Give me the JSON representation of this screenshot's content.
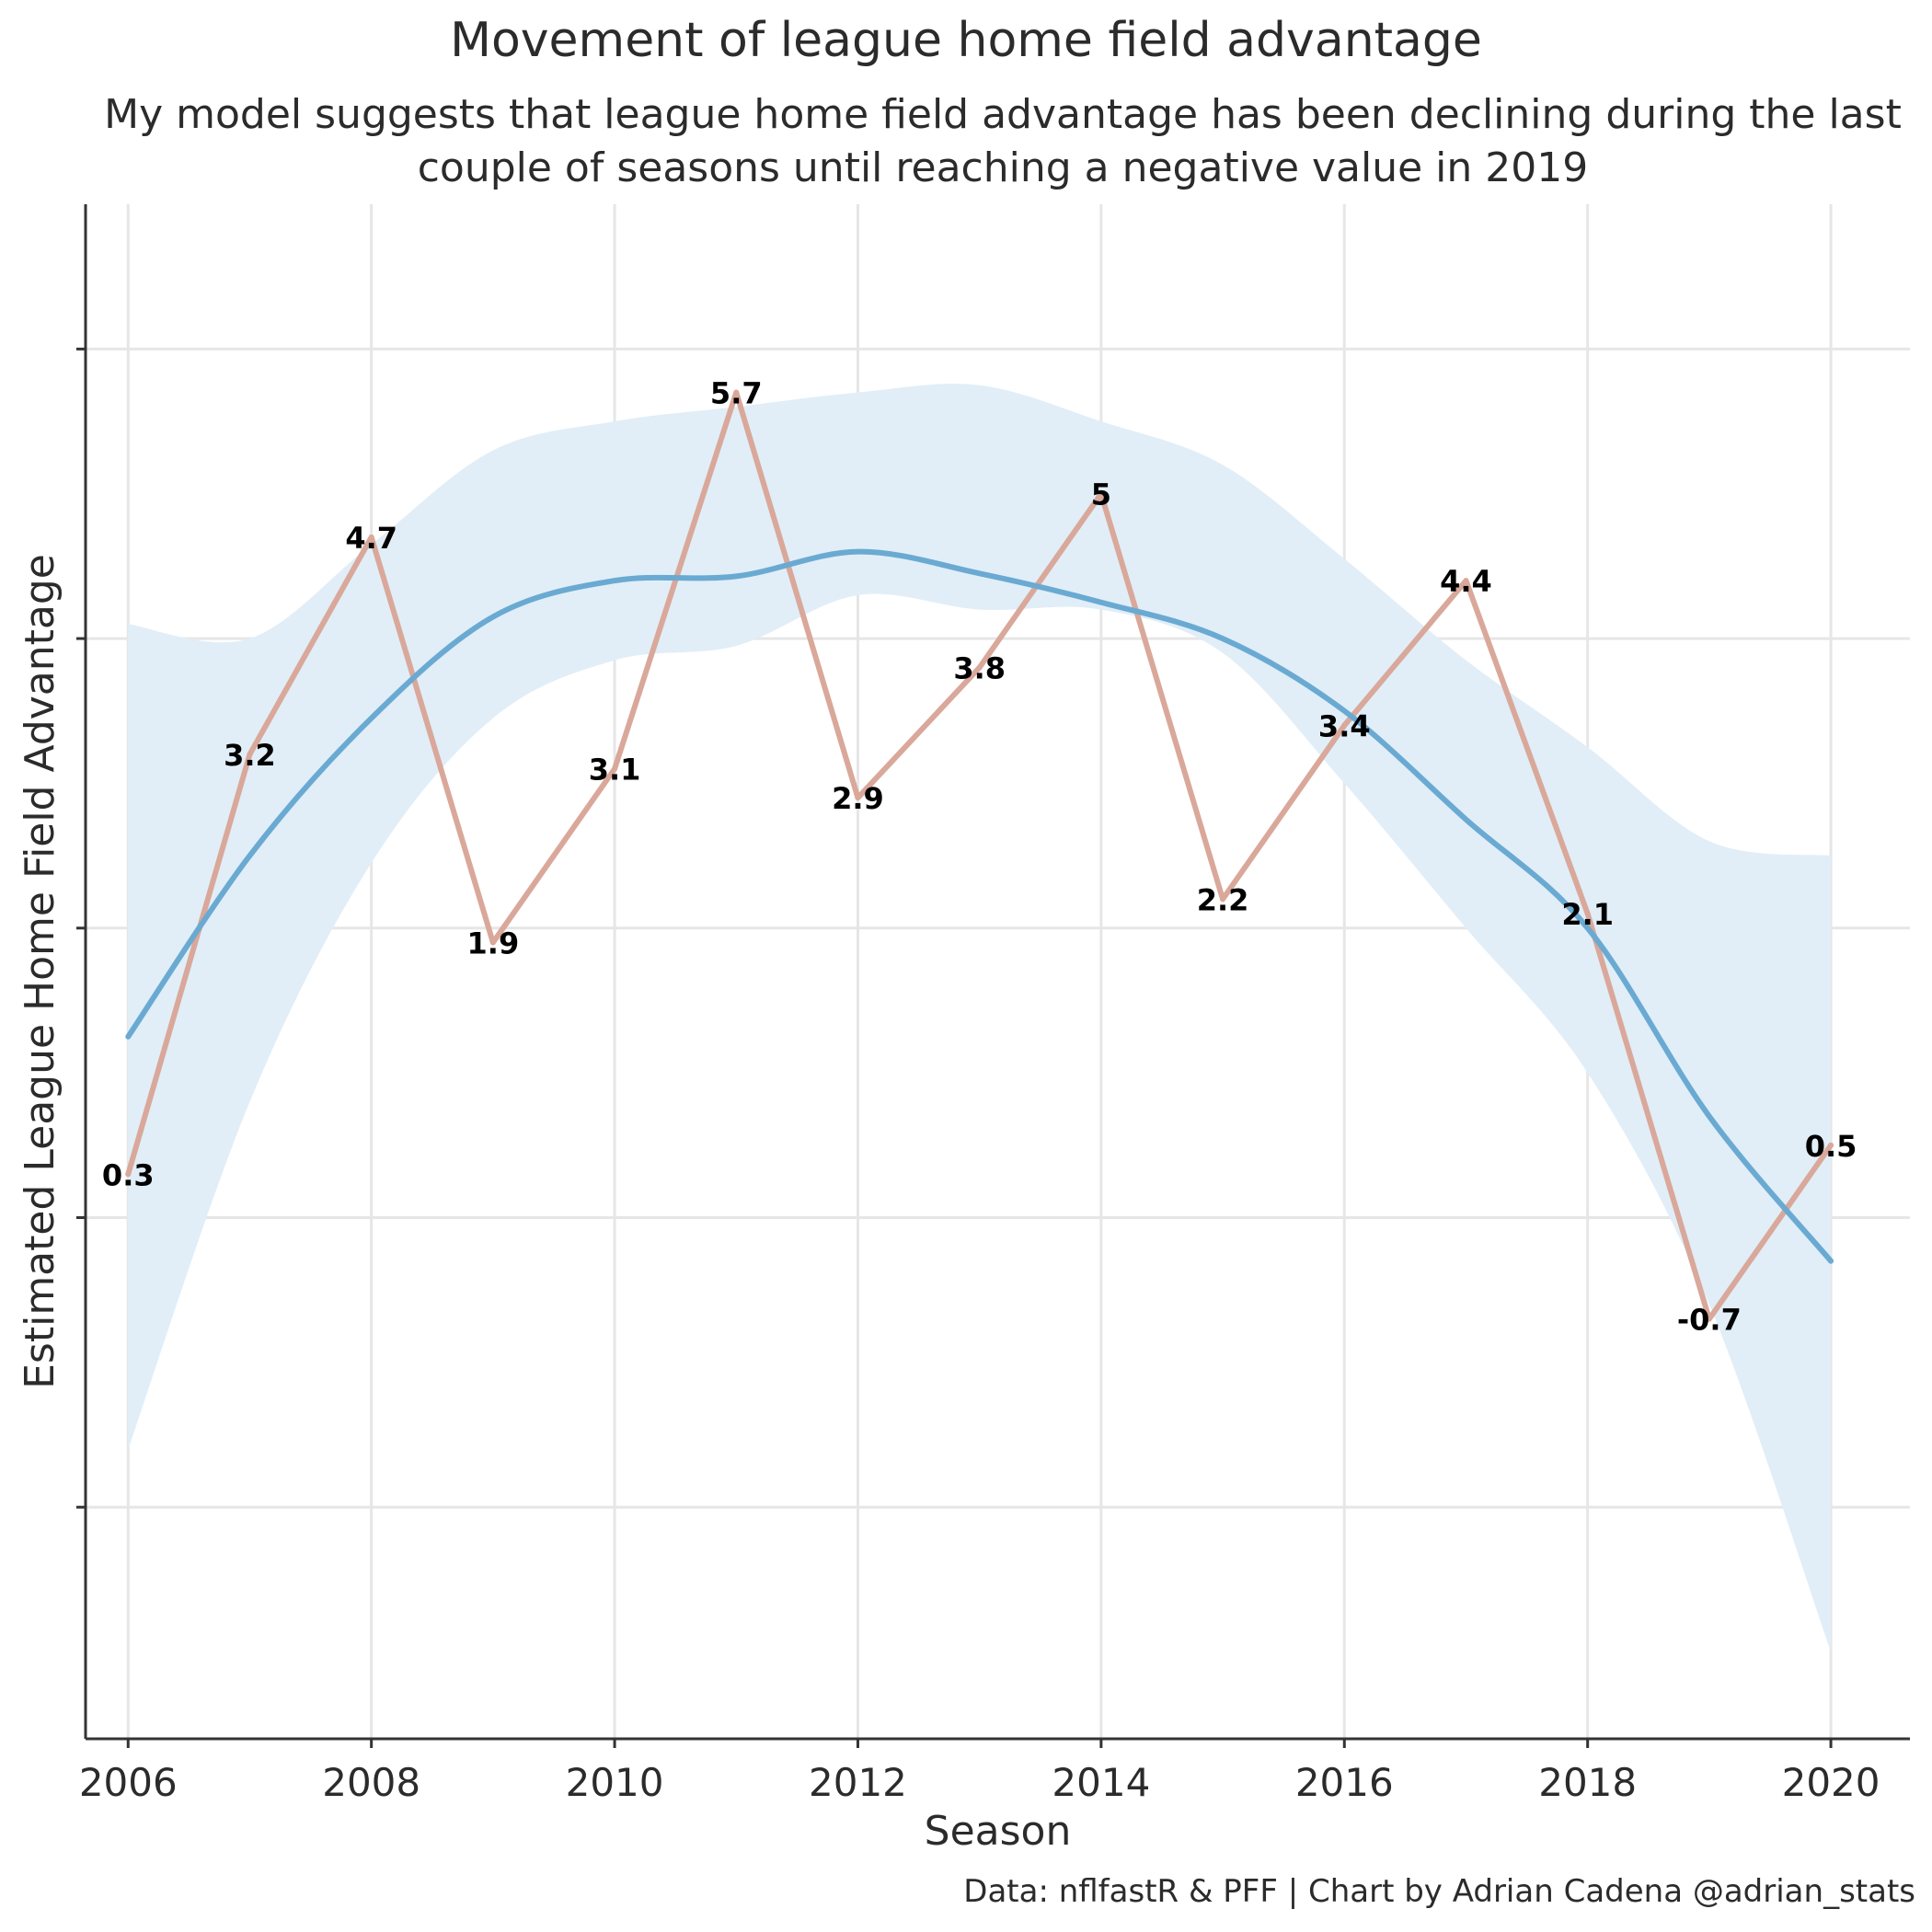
{
  "title": "Movement of league home field advantage",
  "subtitle": "My model suggests that league home field advantage has been declining during the last couple of seasons until reaching a negative value in 2019",
  "caption": "Data: nflfastR & PFF | Chart by Adrian Cadena @adrian_stats",
  "chart_data": {
    "type": "line",
    "xlabel": "Season",
    "ylabel": "Estimated League Home Field Advantage",
    "xlim": [
      2005.65,
      2020.65
    ],
    "ylim": [
      -3.6,
      7.0
    ],
    "x_ticks": [
      2006,
      2008,
      2010,
      2012,
      2014,
      2016,
      2018,
      2020
    ],
    "y_ticks": [
      -2,
      0,
      2,
      4,
      6
    ],
    "y_tick_labels_shown": false,
    "grid": true,
    "series": [
      {
        "color": "#d9a89a",
        "x": [
          2006,
          2007,
          2008,
          2009,
          2010,
          2011,
          2012,
          2013,
          2014,
          2015,
          2016,
          2017,
          2018,
          2019,
          2020
        ],
        "y": [
          0.3,
          3.2,
          4.7,
          1.9,
          3.1,
          5.7,
          2.9,
          3.8,
          5.0,
          2.2,
          3.4,
          4.4,
          2.1,
          -0.7,
          0.5
        ],
        "labels": [
          "0.3",
          "3.2",
          "4.7",
          "1.9",
          "3.1",
          "5.7",
          "2.9",
          "3.8",
          "5",
          "2.2",
          "3.4",
          "4.4",
          "2.1",
          "-0.7",
          "0.5"
        ]
      }
    ],
    "smooth": {
      "color": "#6aaad2",
      "band_color": "#e1eef7",
      "x": [
        2006,
        2007,
        2008,
        2009,
        2010,
        2011,
        2012,
        2013,
        2014,
        2015,
        2016,
        2017,
        2018,
        2019,
        2020
      ],
      "y": [
        1.25,
        2.5,
        3.45,
        4.15,
        4.4,
        4.43,
        4.6,
        4.45,
        4.25,
        4.0,
        3.5,
        2.75,
        2.0,
        0.7,
        -0.3
      ],
      "lower": [
        -1.6,
        0.8,
        2.45,
        3.45,
        3.85,
        3.95,
        4.3,
        4.2,
        4.2,
        3.9,
        3.0,
        2.0,
        1.0,
        -0.6,
        -3.0
      ],
      "upper": [
        4.1,
        4.0,
        4.65,
        5.3,
        5.5,
        5.6,
        5.7,
        5.75,
        5.5,
        5.2,
        4.55,
        3.85,
        3.25,
        2.6,
        2.5
      ]
    }
  }
}
